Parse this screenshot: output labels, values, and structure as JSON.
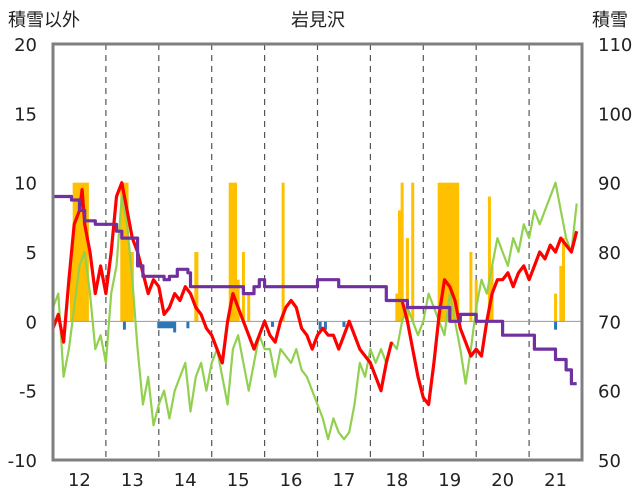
{
  "chart_data": {
    "type": "line",
    "title": "岩見沢",
    "left_axis_label": "積雪以外",
    "right_axis_label": "積雪",
    "left_ylim": [
      -10,
      20
    ],
    "left_yticks": [
      "20",
      "15",
      "10",
      "5",
      "0",
      "-5",
      "-10"
    ],
    "right_ylim": [
      50,
      110
    ],
    "right_yticks": [
      "110",
      "100",
      "90",
      "80",
      "70",
      "60",
      "50"
    ],
    "xlim": [
      11.5,
      21.5
    ],
    "xticks": [
      "12",
      "13",
      "14",
      "15",
      "16",
      "17",
      "18",
      "19",
      "20",
      "21"
    ],
    "grid": "vertical-dashed",
    "colors": {
      "orange_bars": "#ffc000",
      "blue_bars": "#2e75b6",
      "red_line": "#ff0000",
      "green_line": "#92d050",
      "purple_line": "#7030a0"
    },
    "orange_bars": [
      [
        11.85,
        5
      ],
      [
        11.9,
        10
      ],
      [
        11.95,
        10
      ],
      [
        12.0,
        10
      ],
      [
        12.03,
        5
      ],
      [
        12.05,
        10
      ],
      [
        12.1,
        10
      ],
      [
        12.15,
        10
      ],
      [
        12.8,
        10
      ],
      [
        12.85,
        10
      ],
      [
        12.9,
        10
      ],
      [
        12.95,
        5
      ],
      [
        13.0,
        5
      ],
      [
        14.2,
        5
      ],
      [
        14.22,
        5
      ],
      [
        14.85,
        10
      ],
      [
        14.9,
        10
      ],
      [
        14.95,
        10
      ],
      [
        15.0,
        3
      ],
      [
        15.1,
        5
      ],
      [
        15.2,
        2
      ],
      [
        15.85,
        10
      ],
      [
        18.0,
        2
      ],
      [
        18.05,
        8
      ],
      [
        18.1,
        10
      ],
      [
        18.2,
        6
      ],
      [
        18.3,
        10
      ],
      [
        18.8,
        10
      ],
      [
        18.85,
        10
      ],
      [
        18.9,
        10
      ],
      [
        18.95,
        10
      ],
      [
        19.0,
        10
      ],
      [
        19.05,
        10
      ],
      [
        19.1,
        10
      ],
      [
        19.15,
        10
      ],
      [
        19.4,
        5
      ],
      [
        19.5,
        3
      ],
      [
        19.75,
        9
      ],
      [
        19.8,
        4
      ],
      [
        21.0,
        2
      ],
      [
        21.1,
        4
      ],
      [
        21.15,
        6
      ]
    ],
    "blue_bars": [
      [
        12.85,
        -0.6
      ],
      [
        13.5,
        -0.5
      ],
      [
        13.55,
        -0.5
      ],
      [
        13.6,
        -0.5
      ],
      [
        13.65,
        -0.5
      ],
      [
        13.7,
        -0.5
      ],
      [
        13.75,
        -0.5
      ],
      [
        13.8,
        -0.8
      ],
      [
        14.05,
        -0.5
      ],
      [
        15.65,
        -0.4
      ],
      [
        16.55,
        -0.6
      ],
      [
        16.65,
        -0.6
      ],
      [
        17.0,
        -0.4
      ],
      [
        21.0,
        -0.6
      ]
    ],
    "series": [
      {
        "color": "#ff0000",
        "x": [
          11.5,
          11.6,
          11.7,
          11.8,
          11.9,
          12.0,
          12.05,
          12.1,
          12.2,
          12.3,
          12.4,
          12.5,
          12.6,
          12.7,
          12.8,
          12.9,
          13.0,
          13.1,
          13.2,
          13.3,
          13.4,
          13.5,
          13.6,
          13.7,
          13.8,
          13.9,
          14.0,
          14.1,
          14.2,
          14.3,
          14.4,
          14.5,
          14.6,
          14.7,
          14.8,
          14.9,
          15.0,
          15.1,
          15.2,
          15.3,
          15.4,
          15.5,
          15.6,
          15.7,
          15.8,
          15.9,
          16.0,
          16.1,
          16.2,
          16.3,
          16.4,
          16.5,
          16.6,
          16.7,
          16.8,
          16.9,
          17.0,
          17.1,
          17.2,
          17.3,
          17.4,
          17.5,
          17.6,
          17.7,
          17.8,
          17.9
        ],
        "y": [
          -0.5,
          0.5,
          -1.5,
          3.0,
          7.0,
          8.0,
          9.5,
          7.0,
          5.0,
          2.0,
          4.0,
          2.0,
          5.0,
          9.0,
          10.0,
          8.0,
          6.0,
          5.0,
          3.5,
          2.0,
          3.0,
          2.5,
          0.5,
          1.0,
          2.0,
          1.5,
          2.5,
          2.0,
          1.0,
          0.5,
          -0.5,
          -1.0,
          -2.0,
          -3.0,
          0.0,
          2.0,
          1.0,
          0.0,
          -1.0,
          -2.0,
          -1.0,
          0.0,
          -1.0,
          -1.5,
          0.0,
          1.0,
          1.5,
          1.0,
          -0.5,
          -1.0,
          -2.0,
          -1.0,
          -0.5,
          -1.0,
          -1.0,
          -2.0,
          -1.0,
          0.0,
          -1.0,
          -2.0,
          -2.5,
          -3.0,
          -4.0,
          -5.0,
          -3.0,
          -1.5
        ]
      },
      {
        "color": "#ff0000",
        "x": [
          18.1,
          18.2,
          18.3,
          18.4,
          18.5,
          18.6,
          18.7,
          18.8,
          18.9,
          19.0,
          19.1,
          19.2,
          19.3,
          19.4,
          19.5,
          19.6,
          19.7,
          19.8,
          19.9,
          20.0,
          20.1,
          20.2,
          20.3,
          20.4,
          20.5,
          20.6,
          20.7,
          20.8,
          20.9,
          21.0,
          21.1,
          21.2,
          21.3,
          21.4
        ],
        "y": [
          1.5,
          0.0,
          -2.0,
          -4.0,
          -5.5,
          -6.0,
          -3.0,
          0.5,
          3.0,
          2.5,
          1.5,
          -0.5,
          -1.5,
          -2.5,
          -2.0,
          -2.5,
          0.0,
          2.0,
          3.0,
          3.0,
          3.5,
          2.5,
          3.5,
          4.0,
          3.0,
          4.0,
          5.0,
          4.5,
          5.5,
          5.0,
          6.0,
          5.5,
          5.0,
          6.5
        ]
      },
      {
        "color": "#92d050",
        "x": [
          11.5,
          11.6,
          11.7,
          11.8,
          11.9,
          12.0,
          12.1,
          12.2,
          12.3,
          12.4,
          12.5,
          12.6,
          12.7,
          12.8,
          12.9,
          13.0,
          13.1,
          13.2,
          13.3,
          13.4,
          13.5,
          13.6,
          13.7,
          13.8,
          13.9,
          14.0,
          14.1,
          14.2,
          14.3,
          14.4,
          14.5,
          14.6,
          14.7,
          14.8,
          14.9,
          15.0,
          15.1,
          15.2,
          15.3,
          15.4,
          15.5,
          15.6,
          15.7,
          15.8,
          15.9,
          16.0,
          16.1,
          16.2,
          16.3,
          16.4,
          16.5,
          16.6,
          16.7,
          16.8,
          16.9,
          17.0,
          17.1,
          17.2,
          17.3,
          17.4,
          17.5,
          17.6,
          17.7,
          17.8,
          17.9,
          18.0,
          18.1,
          18.2,
          18.3,
          18.4,
          18.5,
          18.6,
          18.7,
          18.8,
          18.9,
          19.0,
          19.1,
          19.2,
          19.3,
          19.4,
          19.5,
          19.6,
          19.7,
          19.8,
          19.9,
          20.0,
          20.1,
          20.2,
          20.3,
          20.4,
          20.5,
          20.6,
          20.7,
          20.8,
          20.9,
          21.0,
          21.1,
          21.2,
          21.3,
          21.4
        ],
        "y": [
          1.0,
          2.0,
          -4.0,
          -2.0,
          1.0,
          4.0,
          5.0,
          2.0,
          -2.0,
          -1.0,
          -3.0,
          2.0,
          4.0,
          9.0,
          7.0,
          3.0,
          -2.0,
          -6.0,
          -4.0,
          -7.5,
          -6.0,
          -5.0,
          -7.0,
          -5.0,
          -4.0,
          -3.0,
          -6.5,
          -4.0,
          -3.0,
          -5.0,
          -3.0,
          -2.0,
          -4.0,
          -6.0,
          -2.0,
          -1.0,
          -3.0,
          -5.0,
          -3.0,
          -1.0,
          -2.0,
          -2.0,
          -4.0,
          -2.0,
          -2.5,
          -3.0,
          -2.0,
          -3.5,
          -4.0,
          -5.0,
          -6.0,
          -7.0,
          -8.5,
          -7.0,
          -8.0,
          -8.5,
          -8.0,
          -6.0,
          -3.0,
          -4.0,
          -2.0,
          -3.0,
          -2.0,
          -3.0,
          -1.5,
          -2.0,
          0.0,
          1.0,
          0.0,
          -1.0,
          0.0,
          2.0,
          1.0,
          0.0,
          -1.0,
          2.0,
          0.0,
          -2.0,
          -4.5,
          -2.0,
          1.0,
          3.0,
          2.0,
          4.0,
          6.0,
          5.0,
          4.0,
          6.0,
          5.0,
          7.0,
          6.0,
          8.0,
          7.0,
          8.0,
          9.0,
          10.0,
          8.0,
          6.0,
          5.0,
          8.5
        ]
      },
      {
        "color": "#7030a0",
        "x": [
          11.5,
          11.85,
          11.85,
          12.0,
          12.0,
          12.1,
          12.1,
          12.3,
          12.3,
          12.7,
          12.7,
          12.8,
          12.8,
          13.1,
          13.1,
          13.2,
          13.2,
          13.6,
          13.6,
          13.7,
          13.7,
          13.85,
          13.85,
          14.05,
          14.05,
          14.1,
          14.1,
          15.1,
          15.1,
          15.3,
          15.3,
          15.4,
          15.4,
          15.5,
          15.5,
          16.5,
          16.5,
          16.9,
          16.9,
          17.8,
          17.8,
          18.0,
          18.2,
          18.2,
          19.0,
          19.0,
          19.2,
          19.2,
          19.5,
          19.5,
          20.0,
          20.0,
          20.6,
          20.6,
          21.0,
          21.0,
          21.2,
          21.2,
          21.3,
          21.3,
          21.4
        ],
        "y": [
          88,
          88,
          87.5,
          87.5,
          86,
          86,
          84.5,
          84.5,
          84,
          84,
          83,
          83,
          82,
          82,
          78,
          78,
          76.5,
          76.5,
          76,
          76,
          76.5,
          76.5,
          77.5,
          77.5,
          77,
          77,
          75,
          75,
          74,
          74,
          75,
          75,
          76,
          76,
          75,
          75,
          76,
          76,
          75,
          75,
          73,
          73,
          73,
          72,
          72,
          70,
          70,
          71,
          71,
          70,
          70,
          68,
          68,
          66,
          66,
          64.5,
          64.5,
          63,
          63,
          61,
          61
        ]
      }
    ]
  }
}
